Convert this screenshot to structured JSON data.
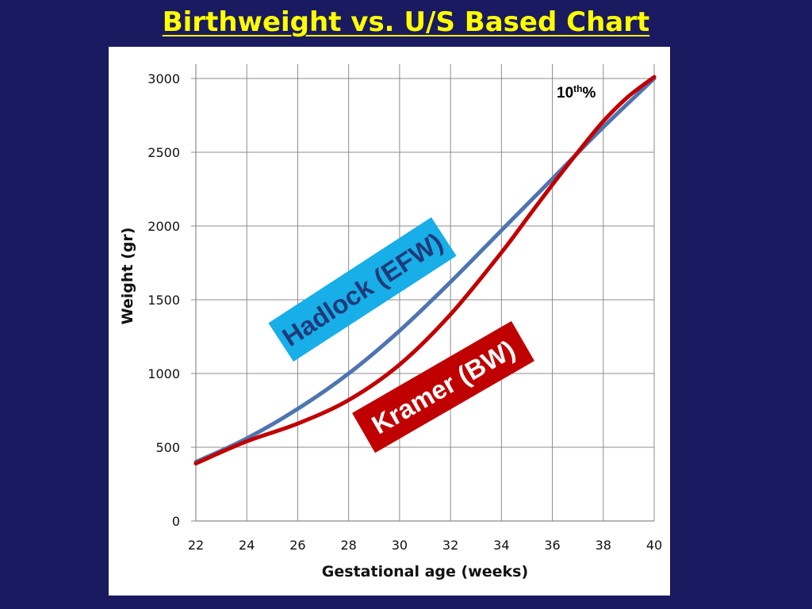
{
  "slide": {
    "title": "Birthweight vs. U/S  Based Chart"
  },
  "chart_data": {
    "type": "line",
    "title": "",
    "xlabel": "Gestational age (weeks)",
    "ylabel": "Weight (gr)",
    "xlim": [
      22,
      40
    ],
    "ylim": [
      0,
      3000
    ],
    "xticks": [
      22,
      24,
      26,
      28,
      30,
      32,
      34,
      36,
      38,
      40
    ],
    "yticks": [
      0,
      500,
      1000,
      1500,
      2000,
      2500,
      3000
    ],
    "grid": true,
    "series": [
      {
        "name": "Hadlock (EFW)",
        "color": "#4f75b0",
        "x": [
          22,
          24,
          26,
          28,
          30,
          32,
          34,
          36,
          38,
          40
        ],
        "values": [
          400,
          560,
          760,
          1000,
          1290,
          1620,
          1970,
          2320,
          2670,
          3000
        ]
      },
      {
        "name": "Kramer (BW)",
        "color": "#c00000",
        "x": [
          22,
          24,
          26,
          28,
          30,
          32,
          34,
          35,
          36,
          37,
          38,
          39,
          40
        ],
        "values": [
          390,
          540,
          660,
          820,
          1060,
          1400,
          1820,
          2050,
          2280,
          2500,
          2710,
          2880,
          3010
        ]
      }
    ],
    "annotations": [
      {
        "label": "10",
        "superscript": "th",
        "suffix": "%"
      }
    ],
    "labels": {
      "hadlock": {
        "text": "Hadlock (EFW)",
        "bg": "#18aee8",
        "fg": "#1f3a7a"
      },
      "kramer": {
        "text": "Kramer (BW)",
        "bg": "#c00000",
        "fg": "#ffffff"
      }
    }
  }
}
